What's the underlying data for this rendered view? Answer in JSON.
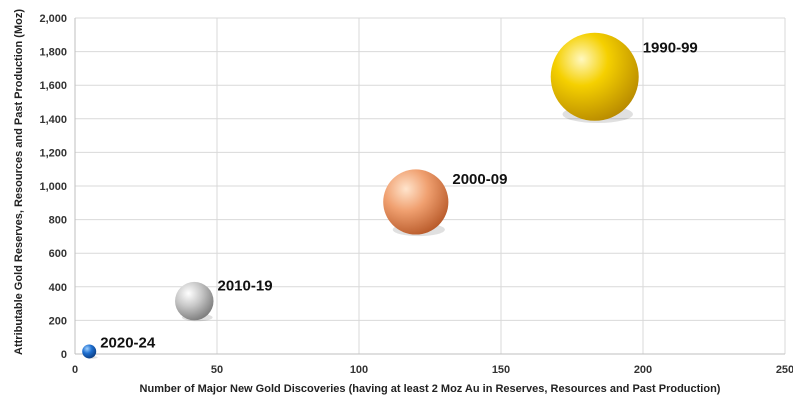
{
  "chart_data": {
    "type": "scatter",
    "title": "",
    "xlabel": "Number of Major New Gold Discoveries (having at least 2 Moz Au in Reserves, Resources and Past Production)",
    "ylabel": "Attributable Gold Reserves, Resources and Past Production (Moz)",
    "xlim": [
      0,
      250
    ],
    "ylim": [
      0,
      2000
    ],
    "x_ticks": [
      "0",
      "50",
      "100",
      "150",
      "200",
      "250"
    ],
    "y_ticks": [
      "0",
      "200",
      "400",
      "600",
      "800",
      "1,000",
      "1,200",
      "1,400",
      "1,600",
      "1,800",
      "2,000"
    ],
    "grid": true,
    "legend": "none",
    "bubble_size": "proportional to gold (Moz)",
    "points": [
      {
        "label": "2020-24",
        "x": 5,
        "y": 15,
        "color": "#1565c0"
      },
      {
        "label": "2010-19",
        "x": 42,
        "y": 315,
        "color": "#9e9e9e"
      },
      {
        "label": "2000-09",
        "x": 120,
        "y": 905,
        "color": "#e0784a"
      },
      {
        "label": "1990-99",
        "x": 183,
        "y": 1650,
        "color": "#e0b000"
      }
    ]
  }
}
